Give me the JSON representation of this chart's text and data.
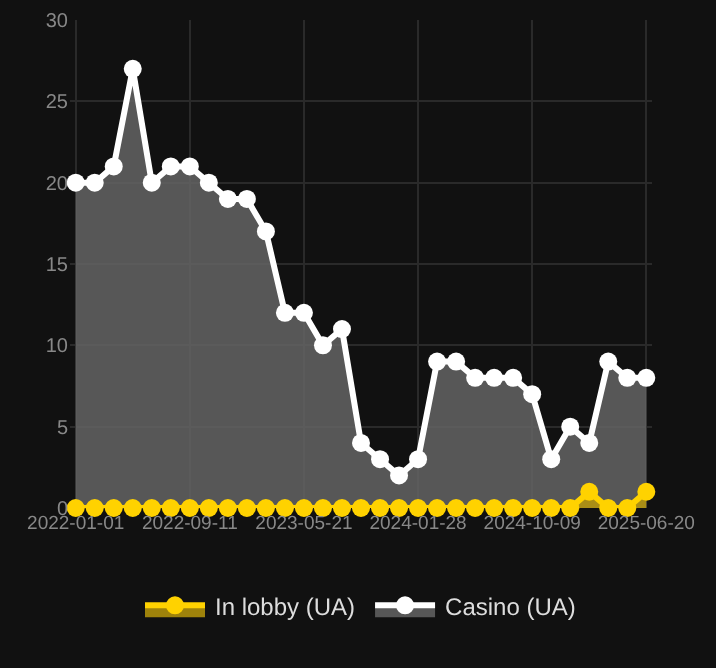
{
  "chart_data": {
    "type": "area",
    "categories": [
      "2022-01-01",
      null,
      null,
      null,
      null,
      null,
      "2022-09-11",
      null,
      null,
      null,
      null,
      null,
      "2023-05-21",
      null,
      null,
      null,
      null,
      null,
      "2024-01-28",
      null,
      null,
      null,
      null,
      null,
      "2024-10-09",
      null,
      null,
      null,
      null,
      null,
      "2025-06-20"
    ],
    "series": [
      {
        "name": "In lobby (UA)",
        "color": "#ffd200",
        "values": [
          0,
          0,
          0,
          0,
          0,
          0,
          0,
          0,
          0,
          0,
          0,
          0,
          0,
          0,
          0,
          0,
          0,
          0,
          0,
          0,
          0,
          0,
          0,
          0,
          0,
          0,
          0,
          1,
          0,
          0,
          1
        ]
      },
      {
        "name": "Casino (UA)",
        "color": "#ffffff",
        "values": [
          20,
          20,
          21,
          27,
          20,
          21,
          21,
          20,
          19,
          19,
          17,
          12,
          12,
          10,
          11,
          4,
          3,
          2,
          3,
          9,
          9,
          8,
          8,
          8,
          7,
          3,
          5,
          4,
          9,
          8,
          8
        ]
      }
    ],
    "ylim": [
      0,
      30
    ],
    "yticks": [
      0,
      5,
      10,
      15,
      20,
      25,
      30
    ],
    "grid": true,
    "legend": "bottom",
    "marker": "circle"
  }
}
